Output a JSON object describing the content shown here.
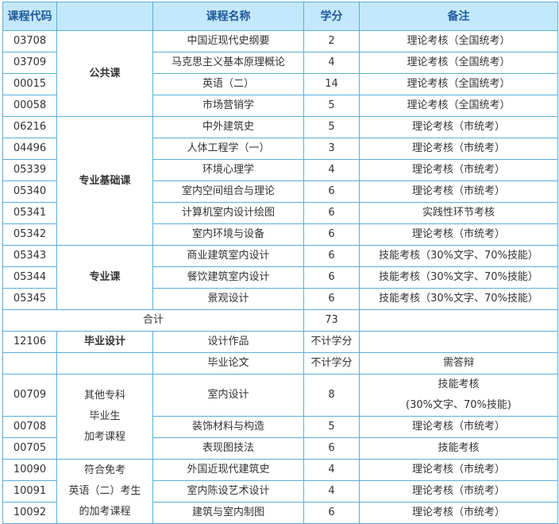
{
  "header": [
    "课程代码",
    "",
    "课程名称",
    "学分",
    "备注"
  ],
  "groups_top": [
    {
      "category": [
        "公共课"
      ],
      "emphasis": true,
      "rows": [
        {
          "code": "03708",
          "name": "中国近现代史纲要",
          "credit": "2",
          "note": [
            "理论考核（全国统考）"
          ]
        },
        {
          "code": "03709",
          "name": "马克思主义基本原理概论",
          "credit": "4",
          "note": [
            "理论考核（全国统考）"
          ]
        },
        {
          "code": "00015",
          "name": "英语（二）",
          "credit": "14",
          "note": [
            "理论考核（全国统考）"
          ]
        },
        {
          "code": "00058",
          "name": "市场营销学",
          "credit": "5",
          "note": [
            "理论考核（全国统考）"
          ]
        }
      ]
    },
    {
      "category": [
        "专业基础课"
      ],
      "emphasis": true,
      "rows": [
        {
          "code": "06216",
          "name": "中外建筑史",
          "credit": "5",
          "note": [
            "理论考核（市统考）"
          ]
        },
        {
          "code": "04496",
          "name": "人体工程学（一）",
          "credit": "3",
          "note": [
            "理论考核（市统考）"
          ]
        },
        {
          "code": "05339",
          "name": "环境心理学",
          "credit": "4",
          "note": [
            "理论考核（市统考）"
          ]
        },
        {
          "code": "05340",
          "name": "室内空间组合与理论",
          "credit": "6",
          "note": [
            "理论考核（市统考）"
          ]
        },
        {
          "code": "05341",
          "name": "计算机室内设计绘图",
          "credit": "6",
          "note": [
            "实践性环节考核"
          ]
        },
        {
          "code": "05342",
          "name": "室内环境与设备",
          "credit": "6",
          "note": [
            "理论考核（市统考）"
          ]
        }
      ]
    },
    {
      "category": [
        "专业课"
      ],
      "emphasis": true,
      "rows": [
        {
          "code": "05343",
          "name": "商业建筑室内设计",
          "credit": "6",
          "note": [
            "技能考核（30%文字、70%技能）"
          ]
        },
        {
          "code": "05344",
          "name": "餐饮建筑室内设计",
          "credit": "6",
          "note": [
            "技能考核（30%文字、70%技能）"
          ]
        },
        {
          "code": "05345",
          "name": "景观设计",
          "credit": "6",
          "note": [
            "技能考核（30%文字、70%技能）"
          ]
        }
      ]
    }
  ],
  "total": {
    "label": "合计",
    "credit": "73",
    "note": ""
  },
  "groups_bottom": [
    {
      "category": [
        "毕业设计"
      ],
      "emphasis": true,
      "rows": [
        {
          "code": "12106",
          "name": "设计作品",
          "credit": "不计学分",
          "note": [
            ""
          ]
        }
      ]
    },
    {
      "category": [
        ""
      ],
      "emphasis": false,
      "rows": [
        {
          "code": "",
          "name": "毕业论文",
          "credit": "不计学分",
          "note": [
            "需答辩"
          ]
        }
      ]
    },
    {
      "category": [
        "其他专科",
        "毕业生",
        "加考课程"
      ],
      "emphasis": false,
      "rows": [
        {
          "code": "00709",
          "name": "室内设计",
          "credit": "8",
          "note": [
            "技能考核",
            "(30%文字、70%技能)"
          ]
        },
        {
          "code": "00708",
          "name": "装饰材料与构造",
          "credit": "5",
          "note": [
            "理论考核（市统考）"
          ]
        },
        {
          "code": "00705",
          "name": "表现图技法",
          "credit": "6",
          "note": [
            "技能考核"
          ]
        }
      ]
    },
    {
      "category": [
        "符合免考",
        "英语（二）考生",
        "的加考课程"
      ],
      "emphasis": false,
      "rows": [
        {
          "code": "10090",
          "name": "外国近现代建筑史",
          "credit": "4",
          "note": [
            "理论考核（市统考）"
          ]
        },
        {
          "code": "10091",
          "name": "室内陈设艺术设计",
          "credit": "4",
          "note": [
            "理论考核（市统考）"
          ]
        },
        {
          "code": "10092",
          "name": "建筑与室内制图",
          "credit": "6",
          "note": [
            "理论考核（市统考）"
          ]
        }
      ]
    }
  ]
}
